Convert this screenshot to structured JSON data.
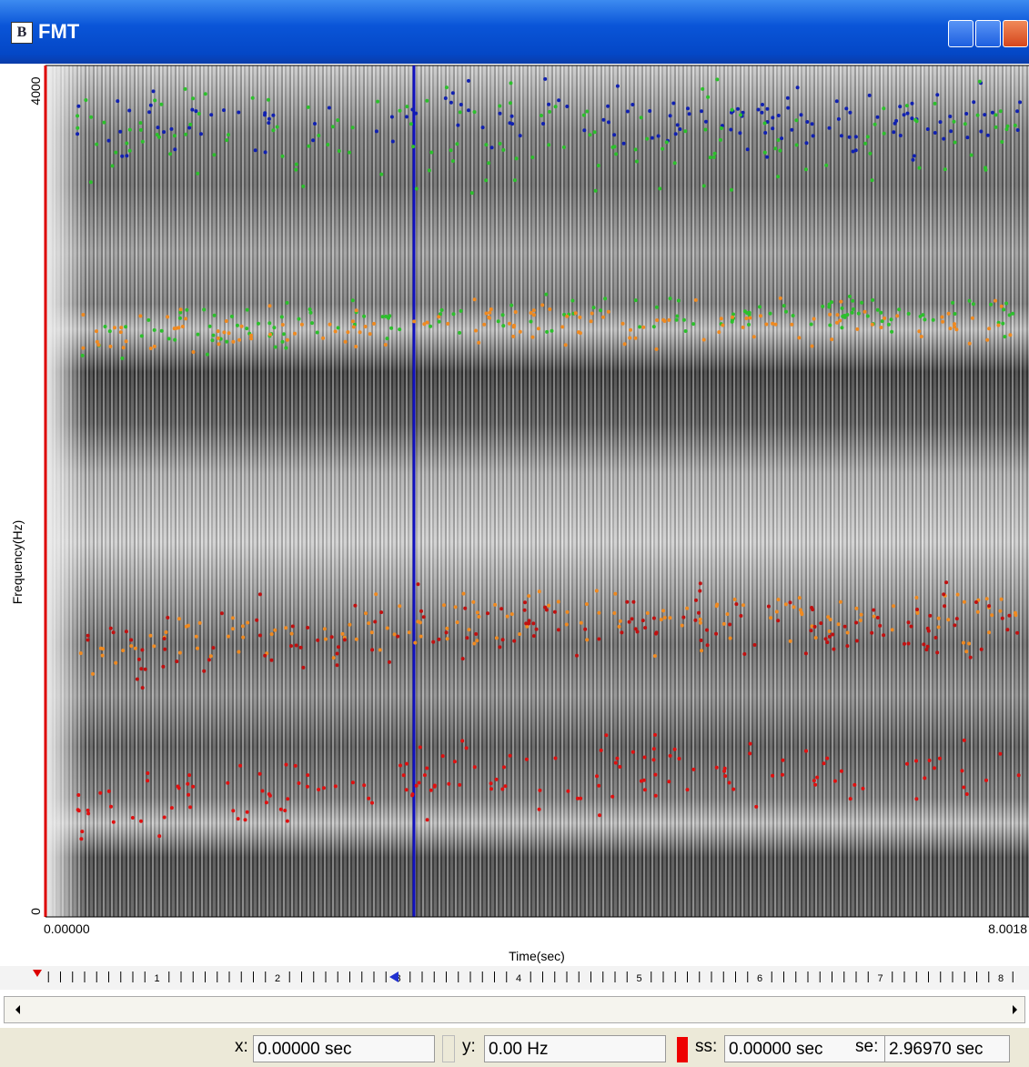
{
  "window": {
    "icon": "B",
    "title": "FMT"
  },
  "plot": {
    "y_label": "Frequency(Hz)",
    "y_ticks": [
      "4000",
      "0"
    ],
    "x_start": "0.00000",
    "x_end": "8.0018",
    "x_label": "Time(sec)"
  },
  "ruler": {
    "labels": [
      "1",
      "2",
      "3",
      "4",
      "5",
      "6",
      "7",
      "8"
    ]
  },
  "status": {
    "fields": [
      {
        "label": "x:",
        "value": "0.00000 sec"
      },
      {
        "label": "y:",
        "value": "0.00 Hz"
      },
      {
        "label": "ss:",
        "value": "0.00000 sec"
      },
      {
        "label": "se:",
        "value": "2.96970 sec"
      }
    ]
  }
}
